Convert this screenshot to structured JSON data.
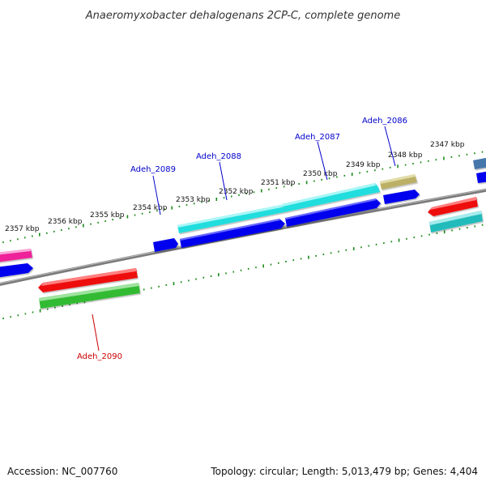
{
  "title": "Anaeromyxobacter dehalogenans 2CP-C, complete genome",
  "footer": {
    "accession": "Accession: NC_007760",
    "summary": "Topology: circular; Length: 5,013,479 bp; Genes: 4,404"
  },
  "ruler": {
    "labels": [
      "2347 kbp",
      "2348 kbp",
      "2349 kbp",
      "2350 kbp",
      "2351 kbp",
      "2352 kbp",
      "2353 kbp",
      "2354 kbp",
      "2355 kbp",
      "2356 kbp",
      "2357 kbp"
    ]
  },
  "gene_labels": [
    {
      "name": "Adeh_2086",
      "strand": "forward",
      "color": "#0000cc"
    },
    {
      "name": "Adeh_2087",
      "strand": "forward",
      "color": "#0000cc"
    },
    {
      "name": "Adeh_2088",
      "strand": "forward",
      "color": "#0000cc"
    },
    {
      "name": "Adeh_2089",
      "strand": "forward",
      "color": "#0000cc"
    },
    {
      "name": "Adeh_2090",
      "strand": "reverse",
      "color": "#cc0000"
    }
  ],
  "colors": {
    "backbone": "#808080",
    "ruler": "#1a8a1a",
    "cds": "#0000ee",
    "gene_cyan": "#22dddd",
    "gene_red": "#ee1111",
    "gene_green": "#33bb33",
    "gene_magenta": "#ee2299",
    "gene_khaki": "#bbb066",
    "gene_teal": "#22bbbb",
    "gene_steel": "#4477aa"
  }
}
